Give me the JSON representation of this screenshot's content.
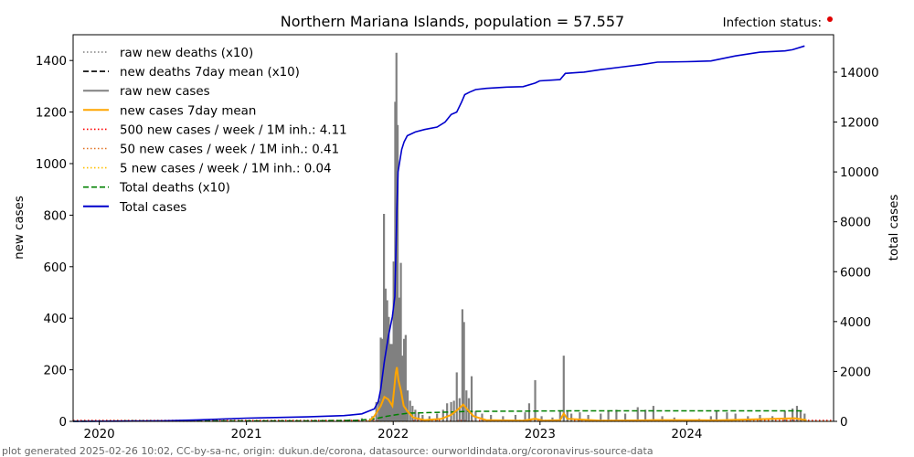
{
  "chart_data": {
    "type": "bar+line",
    "title": "Northern Mariana Islands, population = 57.557",
    "status_label": "Infection status:",
    "status_color": "#e00000",
    "footer": "plot generated 2025-02-26 10:02, CC-by-sa-nc, origin: dukun.de/corona, datasource: ourworldindata.org/coronavirus-source-data",
    "ylabel_left": "new cases",
    "ylabel_right": "total cases",
    "ylim_left": [
      0,
      1500
    ],
    "ylim_right": [
      0,
      15500
    ],
    "xlim": [
      "2019-10-28",
      "2024-12-31"
    ],
    "x_ticks": [
      "2020",
      "2021",
      "2022",
      "2023",
      "2024"
    ],
    "x_tick_dates": [
      "2020-01-01",
      "2021-01-01",
      "2022-01-01",
      "2023-01-01",
      "2024-01-01"
    ],
    "y_ticks_left": [
      0,
      200,
      400,
      600,
      800,
      1000,
      1200,
      1400
    ],
    "y_ticks_right": [
      0,
      2000,
      4000,
      6000,
      8000,
      10000,
      12000,
      14000
    ],
    "legend": [
      {
        "label": "raw new deaths (x10)",
        "color": "#808080",
        "style": "dotted"
      },
      {
        "label": "new deaths 7day mean (x10)",
        "color": "#000000",
        "style": "dashed"
      },
      {
        "label": "raw new cases",
        "color": "#808080",
        "style": "solid"
      },
      {
        "label": "new cases 7day mean",
        "color": "#ffa500",
        "style": "solid"
      },
      {
        "label": "500 new cases / week / 1M inh.: 4.11",
        "color": "#ff0000",
        "style": "dotted"
      },
      {
        "label": "50 new cases / week / 1M inh.: 0.41",
        "color": "#e07020",
        "style": "dotted"
      },
      {
        "label": "5 new cases / week / 1M inh.: 0.04",
        "color": "#ffc000",
        "style": "dotted"
      },
      {
        "label": "Total deaths (x10)",
        "color": "#008000",
        "style": "dashed"
      },
      {
        "label": "Total cases",
        "color": "#0000cc",
        "style": "solid"
      }
    ],
    "thresholds": [
      4.11,
      0.41,
      0.04
    ],
    "raw_new_cases": [
      [
        "2020-03-20",
        2
      ],
      [
        "2020-04-10",
        3
      ],
      [
        "2020-06-01",
        2
      ],
      [
        "2020-08-15",
        4
      ],
      [
        "2020-10-10",
        3
      ],
      [
        "2021-03-01",
        3
      ],
      [
        "2021-06-01",
        4
      ],
      [
        "2021-08-01",
        6
      ],
      [
        "2021-09-15",
        8
      ],
      [
        "2021-10-15",
        12
      ],
      [
        "2021-11-10",
        20
      ],
      [
        "2021-11-20",
        75
      ],
      [
        "2021-11-26",
        80
      ],
      [
        "2021-12-01",
        325
      ],
      [
        "2021-12-05",
        320
      ],
      [
        "2021-12-09",
        805
      ],
      [
        "2021-12-13",
        515
      ],
      [
        "2021-12-17",
        470
      ],
      [
        "2021-12-21",
        405
      ],
      [
        "2021-12-25",
        300
      ],
      [
        "2021-12-29",
        300
      ],
      [
        "2022-01-02",
        620
      ],
      [
        "2022-01-06",
        1240
      ],
      [
        "2022-01-09",
        1430
      ],
      [
        "2022-01-12",
        1150
      ],
      [
        "2022-01-16",
        480
      ],
      [
        "2022-01-20",
        615
      ],
      [
        "2022-01-24",
        255
      ],
      [
        "2022-01-28",
        320
      ],
      [
        "2022-02-01",
        335
      ],
      [
        "2022-02-06",
        120
      ],
      [
        "2022-02-12",
        80
      ],
      [
        "2022-02-18",
        60
      ],
      [
        "2022-02-25",
        45
      ],
      [
        "2022-03-05",
        35
      ],
      [
        "2022-03-15",
        25
      ],
      [
        "2022-04-01",
        20
      ],
      [
        "2022-04-20",
        30
      ],
      [
        "2022-05-05",
        45
      ],
      [
        "2022-05-15",
        70
      ],
      [
        "2022-05-25",
        75
      ],
      [
        "2022-06-01",
        80
      ],
      [
        "2022-06-08",
        190
      ],
      [
        "2022-06-15",
        90
      ],
      [
        "2022-06-22",
        435
      ],
      [
        "2022-06-26",
        385
      ],
      [
        "2022-07-02",
        120
      ],
      [
        "2022-07-08",
        90
      ],
      [
        "2022-07-15",
        175
      ],
      [
        "2022-07-25",
        40
      ],
      [
        "2022-08-10",
        30
      ],
      [
        "2022-09-01",
        25
      ],
      [
        "2022-10-01",
        20
      ],
      [
        "2022-11-01",
        25
      ],
      [
        "2022-11-25",
        35
      ],
      [
        "2022-12-05",
        70
      ],
      [
        "2022-12-20",
        160
      ],
      [
        "2023-01-05",
        20
      ],
      [
        "2023-02-01",
        15
      ],
      [
        "2023-02-20",
        40
      ],
      [
        "2023-03-01",
        255
      ],
      [
        "2023-03-10",
        40
      ],
      [
        "2023-03-20",
        30
      ],
      [
        "2023-04-10",
        35
      ],
      [
        "2023-05-01",
        25
      ],
      [
        "2023-06-01",
        30
      ],
      [
        "2023-06-20",
        40
      ],
      [
        "2023-07-10",
        45
      ],
      [
        "2023-08-01",
        30
      ],
      [
        "2023-09-01",
        55
      ],
      [
        "2023-09-20",
        45
      ],
      [
        "2023-10-10",
        60
      ],
      [
        "2023-11-01",
        20
      ],
      [
        "2023-12-01",
        15
      ],
      [
        "2024-02-01",
        10
      ],
      [
        "2024-03-01",
        20
      ],
      [
        "2024-03-15",
        40
      ],
      [
        "2024-04-10",
        35
      ],
      [
        "2024-05-01",
        30
      ],
      [
        "2024-06-01",
        20
      ],
      [
        "2024-07-01",
        25
      ],
      [
        "2024-08-01",
        20
      ],
      [
        "2024-09-01",
        40
      ],
      [
        "2024-09-20",
        50
      ],
      [
        "2024-10-01",
        60
      ],
      [
        "2024-10-10",
        40
      ],
      [
        "2024-10-20",
        30
      ]
    ],
    "mean_new_cases": [
      [
        "2021-11-01",
        0
      ],
      [
        "2021-11-15",
        20
      ],
      [
        "2021-12-01",
        60
      ],
      [
        "2021-12-10",
        95
      ],
      [
        "2021-12-20",
        85
      ],
      [
        "2021-12-30",
        60
      ],
      [
        "2022-01-03",
        120
      ],
      [
        "2022-01-07",
        185
      ],
      [
        "2022-01-10",
        210
      ],
      [
        "2022-01-14",
        160
      ],
      [
        "2022-01-20",
        120
      ],
      [
        "2022-01-27",
        60
      ],
      [
        "2022-02-05",
        40
      ],
      [
        "2022-02-20",
        15
      ],
      [
        "2022-03-20",
        5
      ],
      [
        "2022-05-01",
        10
      ],
      [
        "2022-05-25",
        25
      ],
      [
        "2022-06-10",
        45
      ],
      [
        "2022-06-24",
        65
      ],
      [
        "2022-07-05",
        45
      ],
      [
        "2022-07-20",
        20
      ],
      [
        "2022-08-20",
        5
      ],
      [
        "2022-11-20",
        3
      ],
      [
        "2022-12-20",
        10
      ],
      [
        "2023-01-10",
        3
      ],
      [
        "2023-02-20",
        5
      ],
      [
        "2023-03-01",
        30
      ],
      [
        "2023-03-10",
        10
      ],
      [
        "2023-06-01",
        3
      ],
      [
        "2023-09-15",
        4
      ],
      [
        "2023-10-15",
        5
      ],
      [
        "2024-03-15",
        4
      ],
      [
        "2024-09-25",
        12
      ],
      [
        "2024-10-25",
        5
      ]
    ],
    "total_cases": [
      [
        "2019-10-28",
        0
      ],
      [
        "2020-03-28",
        10
      ],
      [
        "2020-06-01",
        20
      ],
      [
        "2020-09-01",
        60
      ],
      [
        "2020-12-31",
        130
      ],
      [
        "2021-03-01",
        150
      ],
      [
        "2021-06-01",
        180
      ],
      [
        "2021-09-01",
        230
      ],
      [
        "2021-10-15",
        300
      ],
      [
        "2021-11-15",
        500
      ],
      [
        "2021-11-25",
        800
      ],
      [
        "2021-12-01",
        1300
      ],
      [
        "2021-12-10",
        2400
      ],
      [
        "2021-12-15",
        2900
      ],
      [
        "2021-12-20",
        3400
      ],
      [
        "2021-12-25",
        3800
      ],
      [
        "2021-12-30",
        4200
      ],
      [
        "2022-01-05",
        5000
      ],
      [
        "2022-01-08",
        7000
      ],
      [
        "2022-01-10",
        8500
      ],
      [
        "2022-01-13",
        10000
      ],
      [
        "2022-01-18",
        10500
      ],
      [
        "2022-01-22",
        10900
      ],
      [
        "2022-01-28",
        11200
      ],
      [
        "2022-02-05",
        11450
      ],
      [
        "2022-02-25",
        11600
      ],
      [
        "2022-03-20",
        11700
      ],
      [
        "2022-04-20",
        11800
      ],
      [
        "2022-05-10",
        12000
      ],
      [
        "2022-05-25",
        12300
      ],
      [
        "2022-06-08",
        12400
      ],
      [
        "2022-06-20",
        12800
      ],
      [
        "2022-06-28",
        13100
      ],
      [
        "2022-07-10",
        13200
      ],
      [
        "2022-07-25",
        13300
      ],
      [
        "2022-08-20",
        13350
      ],
      [
        "2022-10-10",
        13400
      ],
      [
        "2022-11-20",
        13420
      ],
      [
        "2022-12-20",
        13560
      ],
      [
        "2022-12-31",
        13650
      ],
      [
        "2023-02-20",
        13700
      ],
      [
        "2023-03-05",
        13950
      ],
      [
        "2023-04-20",
        14000
      ],
      [
        "2023-06-01",
        14100
      ],
      [
        "2023-07-20",
        14200
      ],
      [
        "2023-09-10",
        14300
      ],
      [
        "2023-10-20",
        14400
      ],
      [
        "2023-12-31",
        14420
      ],
      [
        "2024-03-01",
        14450
      ],
      [
        "2024-05-01",
        14650
      ],
      [
        "2024-07-01",
        14800
      ],
      [
        "2024-09-01",
        14850
      ],
      [
        "2024-09-20",
        14900
      ],
      [
        "2024-10-20",
        15050
      ]
    ],
    "total_deaths_x10": [
      [
        "2019-10-28",
        0
      ],
      [
        "2020-03-28",
        20
      ],
      [
        "2020-10-01",
        20
      ],
      [
        "2021-06-01",
        20
      ],
      [
        "2021-10-01",
        40
      ],
      [
        "2021-11-15",
        100
      ],
      [
        "2021-12-15",
        200
      ],
      [
        "2022-01-10",
        270
      ],
      [
        "2022-02-10",
        330
      ],
      [
        "2022-04-01",
        350
      ],
      [
        "2022-06-10",
        380
      ],
      [
        "2022-07-01",
        400
      ],
      [
        "2022-12-01",
        410
      ],
      [
        "2023-03-01",
        420
      ],
      [
        "2024-10-20",
        420
      ]
    ]
  }
}
